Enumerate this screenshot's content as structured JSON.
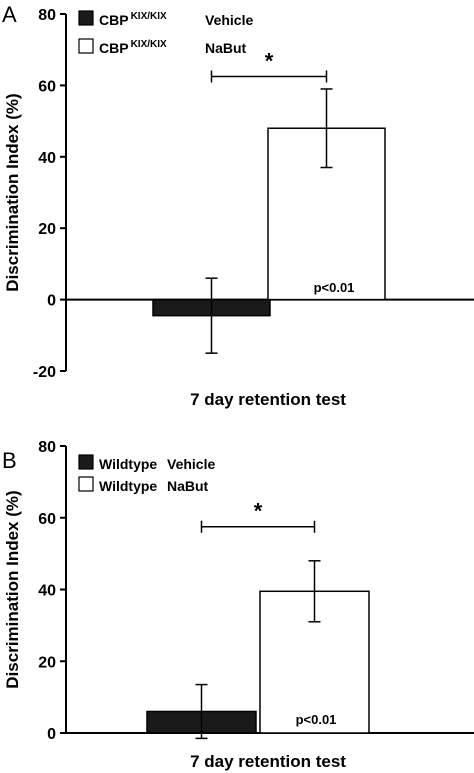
{
  "chart_data": [
    {
      "type": "bar",
      "panel": "A",
      "categories": [
        "CBP KIX/KIX Vehicle",
        "CBP KIX/KIX NaBut"
      ],
      "values": [
        -4.5,
        48
      ],
      "errors": [
        10.5,
        11
      ],
      "colors": [
        "#1a1a1a",
        "#ffffff"
      ],
      "legend": [
        {
          "base": "CBP",
          "sup": "KIX/KIX",
          "treatment": "Vehicle",
          "fill": "#1a1a1a"
        },
        {
          "base": "CBP",
          "sup": "KIX/KIX",
          "treatment": "NaBut",
          "fill": "#ffffff"
        }
      ],
      "xlabel": "7 day retention test",
      "ylabel": "Discrimination Index (%)",
      "ylim": [
        -20,
        80
      ],
      "yticks": [
        -20,
        0,
        20,
        40,
        60,
        80
      ],
      "significance": {
        "marker": "*",
        "between": [
          0,
          1
        ],
        "y": 62.5
      },
      "annotation": "p<0.01",
      "grid": false,
      "legend_position": "top-left"
    },
    {
      "type": "bar",
      "panel": "B",
      "categories": [
        "Wildtype Vehicle",
        "Wildtype NaBut"
      ],
      "values": [
        6,
        39.5
      ],
      "errors": [
        7.5,
        8.5
      ],
      "colors": [
        "#1a1a1a",
        "#ffffff"
      ],
      "legend": [
        {
          "base": "Wildtype",
          "sup": "",
          "treatment": "Vehicle",
          "fill": "#1a1a1a"
        },
        {
          "base": "Wildtype",
          "sup": "",
          "treatment": "NaBut",
          "fill": "#ffffff"
        }
      ],
      "xlabel": "7 day retention test",
      "ylabel": "Discrimination Index (%)",
      "ylim": [
        0,
        80
      ],
      "yticks": [
        0,
        20,
        40,
        60,
        80
      ],
      "significance": {
        "marker": "*",
        "between": [
          0,
          1
        ],
        "y": 57.5
      },
      "annotation": "p<0.01",
      "grid": false,
      "legend_position": "top-left"
    }
  ]
}
